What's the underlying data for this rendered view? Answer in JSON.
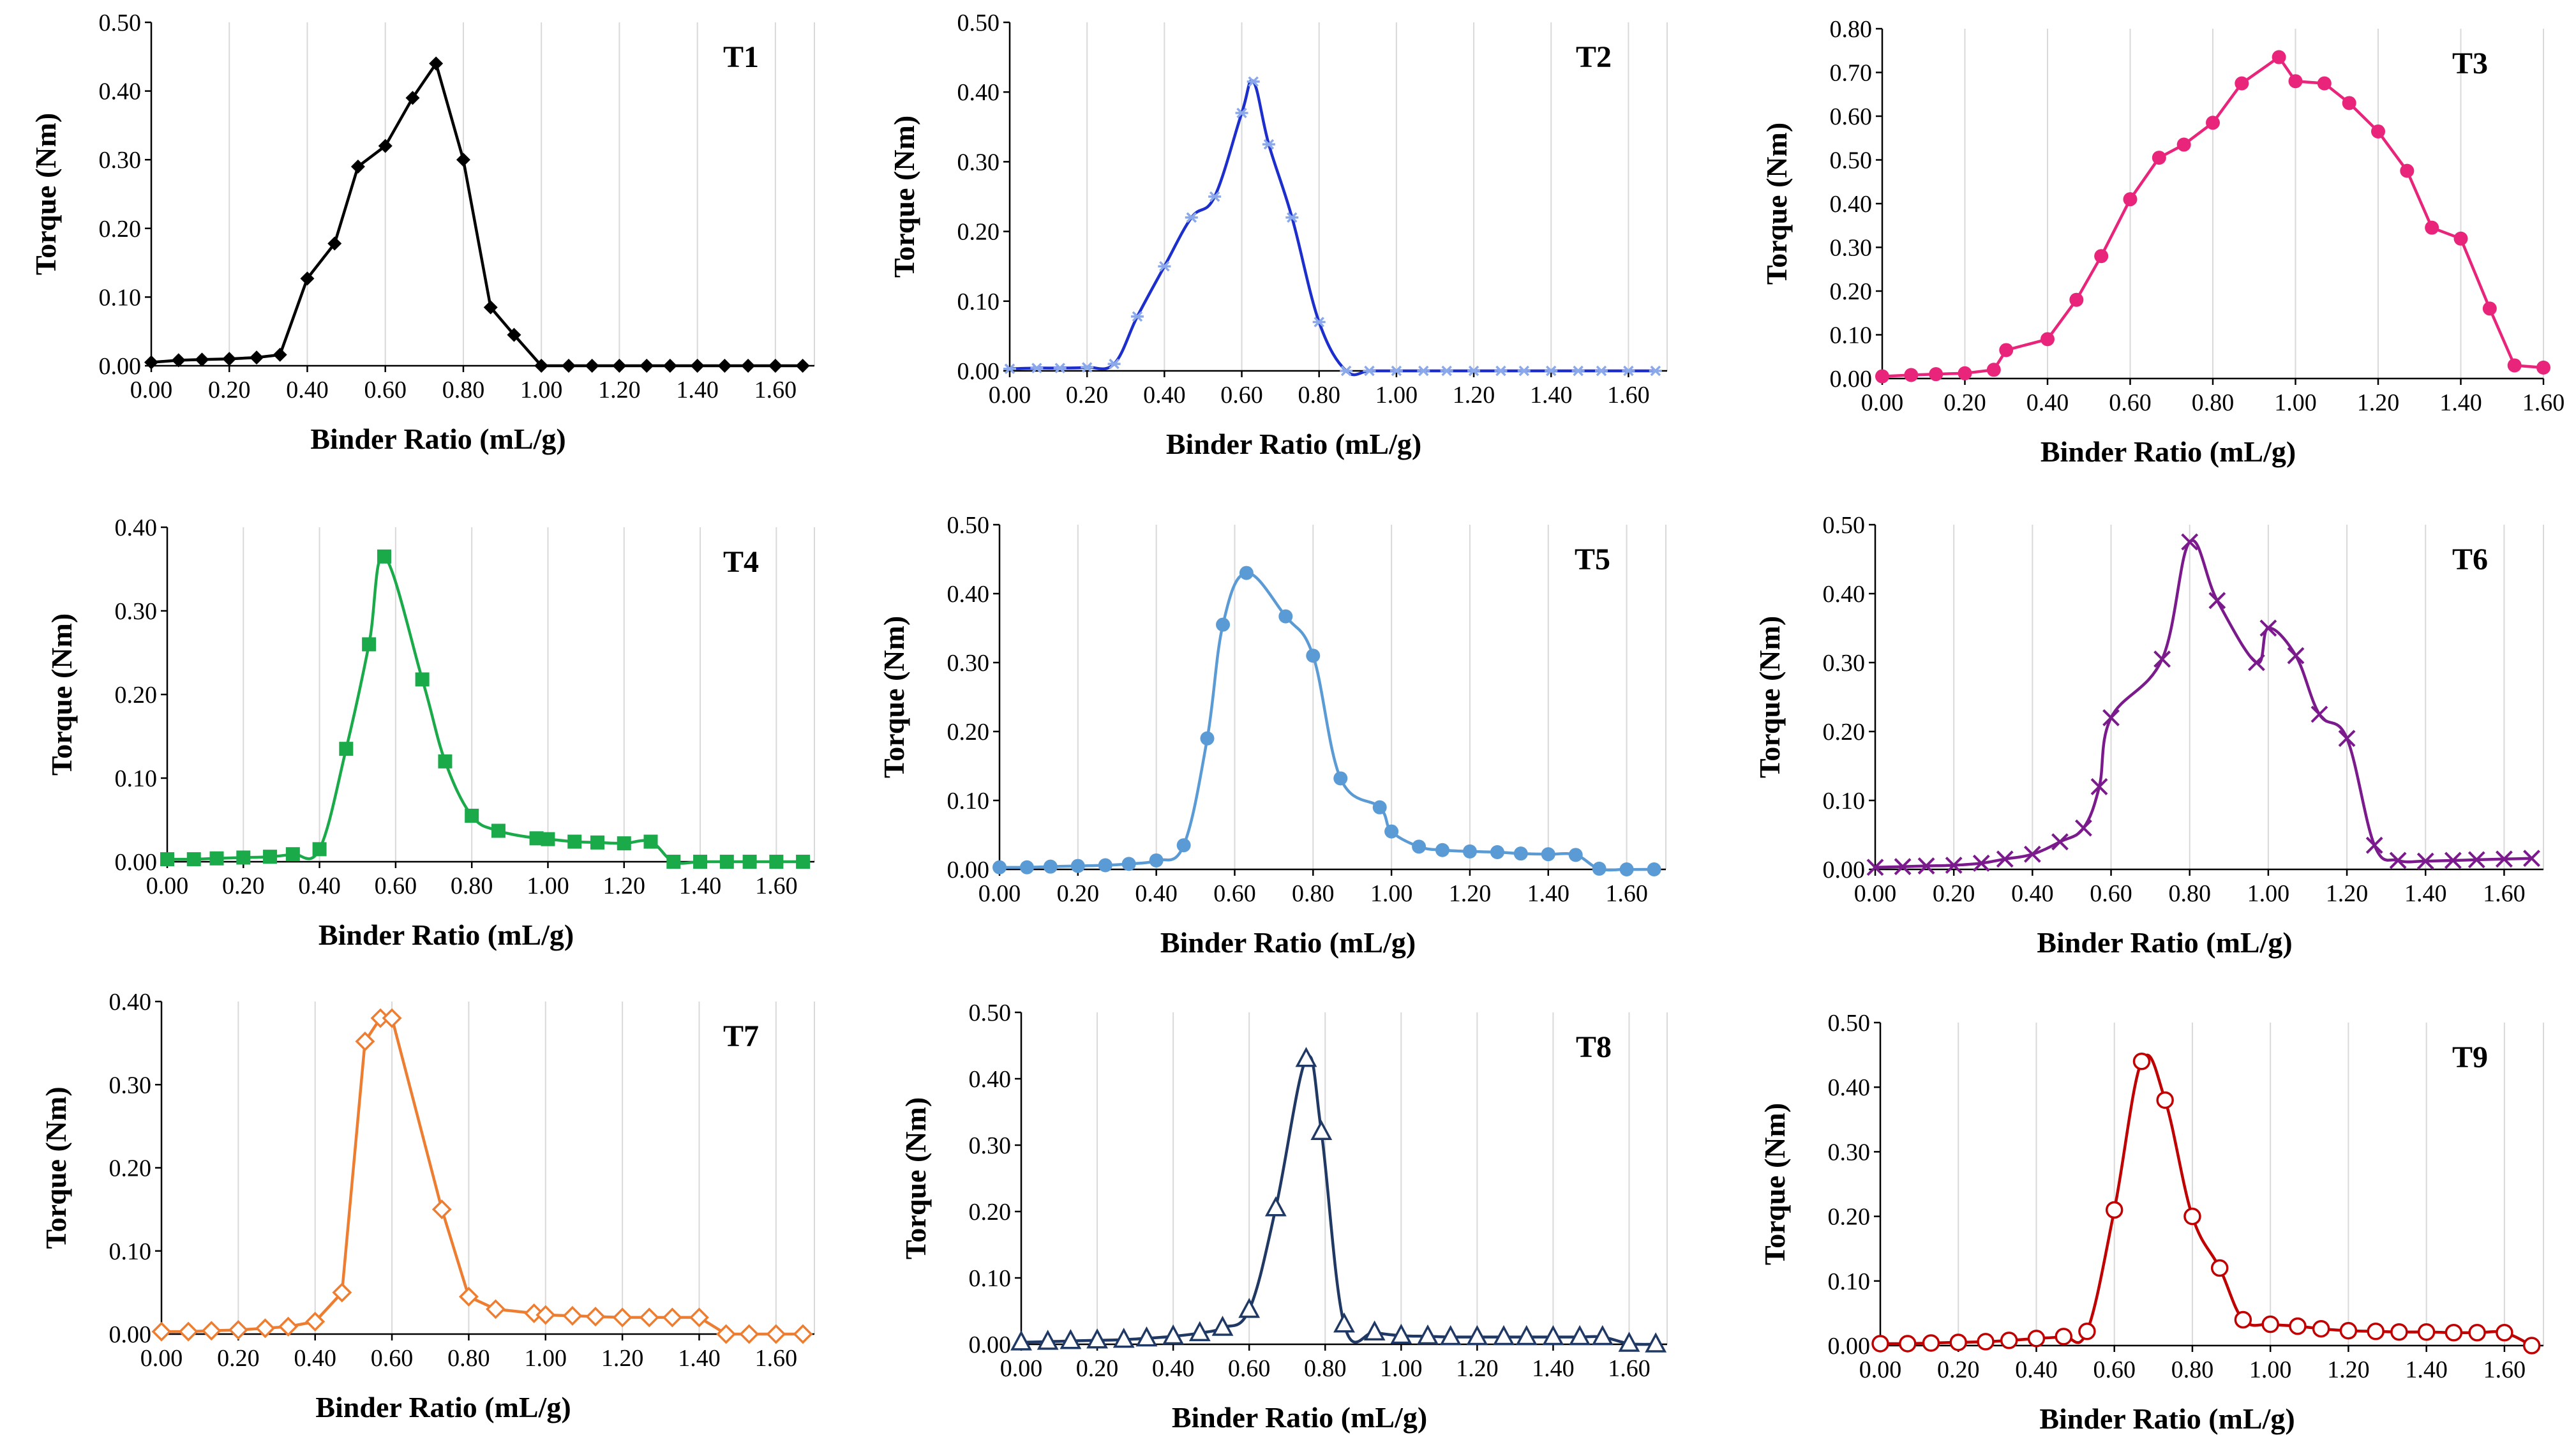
{
  "figure": {
    "layout": "3x3 grid of line charts"
  },
  "chart_data": [
    {
      "id": "T1",
      "type": "line",
      "title": "T1",
      "color": "#000000",
      "marker": "diamond",
      "smooth": false,
      "xlabel": "Binder Ratio (mL/g)",
      "ylabel": "Torque (Nm)",
      "xlim": [
        0,
        1.7
      ],
      "ylim": [
        0,
        0.5
      ],
      "xticks": [
        "0.00",
        "0.20",
        "0.40",
        "0.60",
        "0.80",
        "1.00",
        "1.20",
        "1.40",
        "1.60"
      ],
      "yticks": [
        "0.00",
        "0.10",
        "0.20",
        "0.30",
        "0.40",
        "0.50"
      ],
      "x": [
        0.0,
        0.07,
        0.13,
        0.2,
        0.27,
        0.33,
        0.4,
        0.47,
        0.53,
        0.6,
        0.67,
        0.73,
        0.8,
        0.87,
        0.93,
        1.0,
        1.07,
        1.13,
        1.2,
        1.27,
        1.33,
        1.4,
        1.47,
        1.53,
        1.6,
        1.67
      ],
      "y": [
        0.005,
        0.008,
        0.009,
        0.01,
        0.012,
        0.016,
        0.127,
        0.178,
        0.29,
        0.32,
        0.39,
        0.44,
        0.3,
        0.085,
        0.045,
        0,
        0,
        0,
        0,
        0,
        0,
        0,
        0,
        0,
        0,
        0
      ]
    },
    {
      "id": "T2",
      "type": "line",
      "title": "T2",
      "color": "#1c2fcc",
      "marker": "star",
      "markerColor": "#8aa8ea",
      "smooth": true,
      "xlabel": "Binder Ratio (mL/g)",
      "ylabel": "Torque (Nm)",
      "xlim": [
        0,
        1.7
      ],
      "ylim": [
        0,
        0.5
      ],
      "xticks": [
        "0.00",
        "0.20",
        "0.40",
        "0.60",
        "0.80",
        "1.00",
        "1.20",
        "1.40",
        "1.60"
      ],
      "yticks": [
        "0.00",
        "0.10",
        "0.20",
        "0.30",
        "0.40",
        "0.50"
      ],
      "x": [
        0.0,
        0.07,
        0.13,
        0.2,
        0.27,
        0.33,
        0.4,
        0.47,
        0.53,
        0.6,
        0.63,
        0.67,
        0.73,
        0.8,
        0.87,
        0.93,
        1.0,
        1.07,
        1.13,
        1.2,
        1.27,
        1.33,
        1.4,
        1.47,
        1.53,
        1.6,
        1.67
      ],
      "y": [
        0.003,
        0.004,
        0.004,
        0.005,
        0.01,
        0.078,
        0.15,
        0.22,
        0.25,
        0.37,
        0.415,
        0.325,
        0.22,
        0.07,
        0,
        0,
        0,
        0,
        0,
        0,
        0,
        0,
        0,
        0,
        0,
        0,
        0
      ]
    },
    {
      "id": "T3",
      "type": "line",
      "title": "T3",
      "color": "#e8247b",
      "marker": "circle",
      "smooth": false,
      "xlabel": "Binder Ratio (mL/g)",
      "ylabel": "Torque (Nm)",
      "xlim": [
        0,
        1.6
      ],
      "ylim": [
        0,
        0.8
      ],
      "xticks": [
        "0.00",
        "0.20",
        "0.40",
        "0.60",
        "0.80",
        "1.00",
        "1.20",
        "1.40",
        "1.60"
      ],
      "yticks": [
        "0.00",
        "0.10",
        "0.20",
        "0.30",
        "0.40",
        "0.50",
        "0.60",
        "0.70",
        "0.80"
      ],
      "x": [
        0.0,
        0.07,
        0.13,
        0.2,
        0.27,
        0.3,
        0.4,
        0.47,
        0.53,
        0.6,
        0.67,
        0.73,
        0.8,
        0.87,
        0.96,
        1.0,
        1.07,
        1.13,
        1.2,
        1.27,
        1.33,
        1.4,
        1.47,
        1.53,
        1.6
      ],
      "y": [
        0.005,
        0.008,
        0.01,
        0.012,
        0.02,
        0.065,
        0.09,
        0.18,
        0.28,
        0.41,
        0.505,
        0.535,
        0.585,
        0.675,
        0.735,
        0.68,
        0.675,
        0.63,
        0.565,
        0.475,
        0.345,
        0.32,
        0.16,
        0.03,
        0.025
      ]
    },
    {
      "id": "T4",
      "type": "line",
      "title": "T4",
      "color": "#1aaa4a",
      "marker": "square",
      "smooth": true,
      "xlabel": "Binder Ratio (mL/g)",
      "ylabel": "Torque (Nm)",
      "xlim": [
        0,
        1.7
      ],
      "ylim": [
        0,
        0.4
      ],
      "xticks": [
        "0.00",
        "0.20",
        "0.40",
        "0.60",
        "0.80",
        "1.00",
        "1.20",
        "1.40",
        "1.60"
      ],
      "yticks": [
        "0.00",
        "0.10",
        "0.20",
        "0.30",
        "0.40"
      ],
      "x": [
        0.0,
        0.07,
        0.13,
        0.2,
        0.27,
        0.33,
        0.4,
        0.47,
        0.53,
        0.57,
        0.67,
        0.73,
        0.8,
        0.87,
        0.97,
        1.0,
        1.07,
        1.13,
        1.2,
        1.27,
        1.33,
        1.4,
        1.47,
        1.53,
        1.6,
        1.67
      ],
      "y": [
        0.003,
        0.003,
        0.004,
        0.005,
        0.006,
        0.009,
        0.015,
        0.135,
        0.26,
        0.365,
        0.218,
        0.12,
        0.055,
        0.037,
        0.028,
        0.027,
        0.024,
        0.023,
        0.022,
        0.024,
        0,
        0,
        0,
        0,
        0,
        0
      ]
    },
    {
      "id": "T5",
      "type": "line",
      "title": "T5",
      "color": "#5b9bd5",
      "marker": "circle",
      "smooth": true,
      "xlabel": "Binder Ratio (mL/g)",
      "ylabel": "Torque (Nm)",
      "xlim": [
        0,
        1.7
      ],
      "ylim": [
        0,
        0.5
      ],
      "xticks": [
        "0.00",
        "0.20",
        "0.40",
        "0.60",
        "0.80",
        "1.00",
        "1.20",
        "1.40",
        "1.60"
      ],
      "yticks": [
        "0.00",
        "0.10",
        "0.20",
        "0.30",
        "0.40",
        "0.50"
      ],
      "x": [
        0.0,
        0.07,
        0.13,
        0.2,
        0.27,
        0.33,
        0.4,
        0.47,
        0.53,
        0.57,
        0.63,
        0.73,
        0.8,
        0.87,
        0.97,
        1.0,
        1.07,
        1.13,
        1.2,
        1.27,
        1.33,
        1.4,
        1.47,
        1.53,
        1.6,
        1.67
      ],
      "y": [
        0.003,
        0.003,
        0.004,
        0.005,
        0.006,
        0.008,
        0.013,
        0.035,
        0.19,
        0.355,
        0.43,
        0.367,
        0.31,
        0.132,
        0.09,
        0.055,
        0.033,
        0.028,
        0.026,
        0.025,
        0.023,
        0.022,
        0.021,
        0.001,
        0,
        0
      ]
    },
    {
      "id": "T6",
      "type": "line",
      "title": "T6",
      "color": "#7b1a8c",
      "marker": "x",
      "smooth": true,
      "xlabel": "Binder Ratio (mL/g)",
      "ylabel": "Torque (Nm)",
      "xlim": [
        0,
        1.7
      ],
      "ylim": [
        0,
        0.5
      ],
      "xticks": [
        "0.00",
        "0.20",
        "0.40",
        "0.60",
        "0.80",
        "1.00",
        "1.20",
        "1.40",
        "1.60"
      ],
      "yticks": [
        "0.00",
        "0.10",
        "0.20",
        "0.30",
        "0.40",
        "0.50"
      ],
      "x": [
        0.0,
        0.07,
        0.13,
        0.2,
        0.27,
        0.33,
        0.4,
        0.47,
        0.53,
        0.57,
        0.6,
        0.73,
        0.8,
        0.87,
        0.97,
        1.0,
        1.07,
        1.13,
        1.2,
        1.27,
        1.33,
        1.4,
        1.47,
        1.53,
        1.6,
        1.67
      ],
      "y": [
        0.003,
        0.004,
        0.005,
        0.006,
        0.009,
        0.015,
        0.022,
        0.04,
        0.06,
        0.12,
        0.22,
        0.305,
        0.475,
        0.39,
        0.3,
        0.35,
        0.31,
        0.225,
        0.19,
        0.035,
        0.013,
        0.012,
        0.013,
        0.014,
        0.015,
        0.016
      ]
    },
    {
      "id": "T7",
      "type": "line",
      "title": "T7",
      "color": "#ed7d31",
      "marker": "diamond-open",
      "smooth": false,
      "xlabel": "Binder Ratio (mL/g)",
      "ylabel": "Torque (Nm)",
      "xlim": [
        0,
        1.7
      ],
      "ylim": [
        0,
        0.4
      ],
      "xticks": [
        "0.00",
        "0.20",
        "0.40",
        "0.60",
        "0.80",
        "1.00",
        "1.20",
        "1.40",
        "1.60"
      ],
      "yticks": [
        "0.00",
        "0.10",
        "0.20",
        "0.30",
        "0.40"
      ],
      "x": [
        0.0,
        0.07,
        0.13,
        0.2,
        0.27,
        0.33,
        0.4,
        0.47,
        0.53,
        0.57,
        0.6,
        0.73,
        0.8,
        0.87,
        0.97,
        1.0,
        1.07,
        1.13,
        1.2,
        1.27,
        1.33,
        1.4,
        1.47,
        1.53,
        1.6,
        1.67
      ],
      "y": [
        0.003,
        0.003,
        0.004,
        0.005,
        0.007,
        0.009,
        0.015,
        0.05,
        0.352,
        0.38,
        0.38,
        0.15,
        0.045,
        0.03,
        0.025,
        0.023,
        0.022,
        0.021,
        0.02,
        0.02,
        0.02,
        0.02,
        0,
        0,
        0,
        0
      ]
    },
    {
      "id": "T8",
      "type": "line",
      "title": "T8",
      "color": "#1f3864",
      "marker": "triangle-open",
      "smooth": true,
      "xlabel": "Binder Ratio (mL/g)",
      "ylabel": "Torque (Nm)",
      "xlim": [
        0,
        1.7
      ],
      "ylim": [
        0,
        0.5
      ],
      "xticks": [
        "0.00",
        "0.20",
        "0.40",
        "0.60",
        "0.80",
        "1.00",
        "1.20",
        "1.40",
        "1.60"
      ],
      "yticks": [
        "0.00",
        "0.10",
        "0.20",
        "0.30",
        "0.40",
        "0.50"
      ],
      "x": [
        0.0,
        0.07,
        0.13,
        0.2,
        0.27,
        0.33,
        0.4,
        0.47,
        0.53,
        0.6,
        0.67,
        0.75,
        0.79,
        0.85,
        0.93,
        1.0,
        1.07,
        1.13,
        1.2,
        1.27,
        1.33,
        1.4,
        1.47,
        1.53,
        1.6,
        1.67
      ],
      "y": [
        0.003,
        0.004,
        0.005,
        0.006,
        0.007,
        0.009,
        0.012,
        0.017,
        0.025,
        0.052,
        0.205,
        0.43,
        0.32,
        0.03,
        0.018,
        0.013,
        0.012,
        0.011,
        0.011,
        0.011,
        0.011,
        0.011,
        0.011,
        0.011,
        0.001,
        0
      ]
    },
    {
      "id": "T9",
      "type": "line",
      "title": "T9",
      "color": "#c00000",
      "marker": "circle-open",
      "smooth": true,
      "xlabel": "Binder Ratio (mL/g)",
      "ylabel": "Torque (Nm)",
      "xlim": [
        0,
        1.7
      ],
      "ylim": [
        0,
        0.5
      ],
      "xticks": [
        "0.00",
        "0.20",
        "0.40",
        "0.60",
        "0.80",
        "1.00",
        "1.20",
        "1.40",
        "1.60"
      ],
      "yticks": [
        "0.00",
        "0.10",
        "0.20",
        "0.30",
        "0.40",
        "0.50"
      ],
      "x": [
        0.0,
        0.07,
        0.13,
        0.2,
        0.27,
        0.33,
        0.4,
        0.47,
        0.53,
        0.6,
        0.67,
        0.73,
        0.8,
        0.87,
        0.93,
        1.0,
        1.07,
        1.13,
        1.2,
        1.27,
        1.33,
        1.4,
        1.47,
        1.53,
        1.6,
        1.67
      ],
      "y": [
        0.003,
        0.003,
        0.004,
        0.005,
        0.006,
        0.008,
        0.011,
        0.014,
        0.022,
        0.21,
        0.44,
        0.38,
        0.2,
        0.12,
        0.04,
        0.033,
        0.03,
        0.026,
        0.023,
        0.022,
        0.021,
        0.021,
        0.02,
        0.02,
        0.02,
        0.0
      ]
    }
  ]
}
